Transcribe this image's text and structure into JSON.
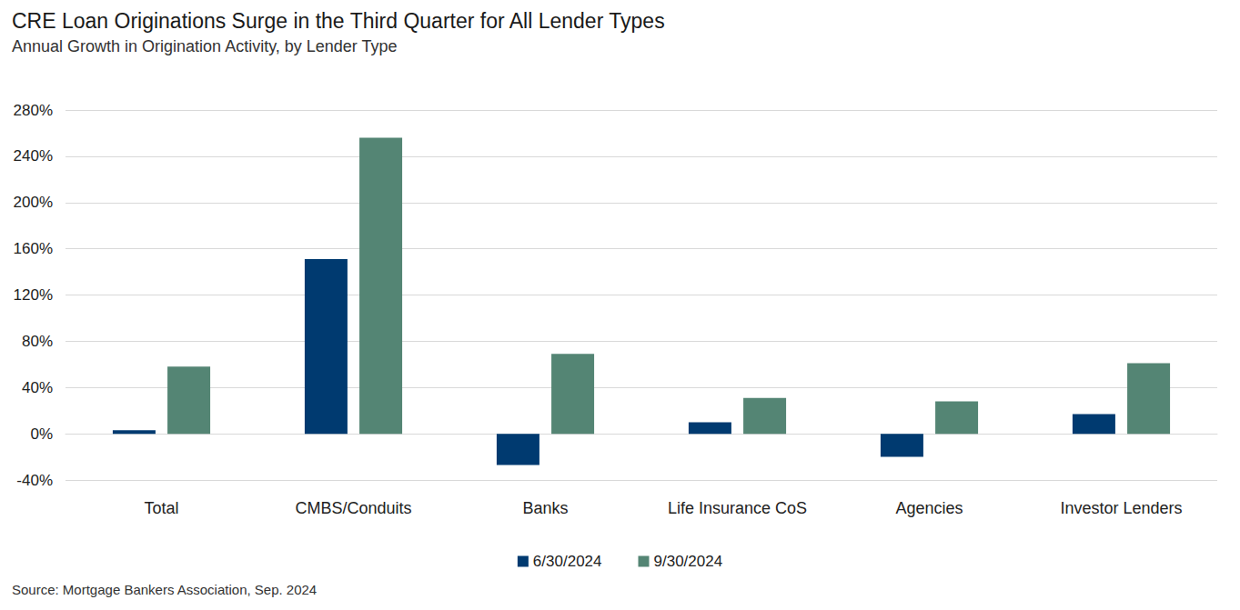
{
  "chart_data": {
    "type": "bar",
    "title": "CRE Loan Originations Surge in the Third Quarter for All Lender Types",
    "subtitle": "Annual Growth in Origination Activity, by Lender Type",
    "source": "Source: Mortgage Bankers Association, Sep. 2024",
    "categories": [
      "Total",
      "CMBS/Conduits",
      "Banks",
      "Life Insurance CoS",
      "Agencies",
      "Investor Lenders"
    ],
    "series": [
      {
        "name": "6/30/2024",
        "color": "#003a70",
        "values": [
          3,
          151,
          -27,
          10,
          -20,
          17
        ]
      },
      {
        "name": "9/30/2024",
        "color": "#548574",
        "values": [
          58,
          256,
          69,
          31,
          28,
          61
        ]
      }
    ],
    "ylim": [
      -40,
      280
    ],
    "yticks": [
      {
        "value": -40,
        "label": "-40%"
      },
      {
        "value": 0,
        "label": "0%"
      },
      {
        "value": 40,
        "label": "40%"
      },
      {
        "value": 80,
        "label": "80%"
      },
      {
        "value": 120,
        "label": "120%"
      },
      {
        "value": 160,
        "label": "160%"
      },
      {
        "value": 200,
        "label": "200%"
      },
      {
        "value": 240,
        "label": "240%"
      },
      {
        "value": 280,
        "label": "280%"
      }
    ],
    "grid": true,
    "legend": "bottom"
  }
}
